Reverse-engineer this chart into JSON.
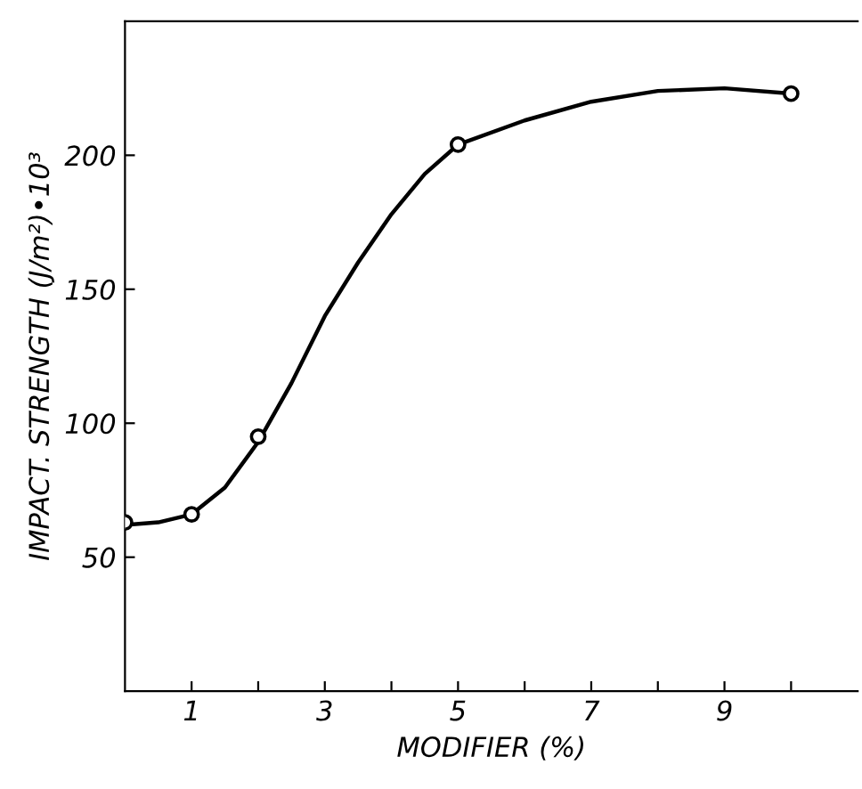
{
  "chart_data": {
    "type": "line",
    "xlabel": "MODIFIER (%)",
    "ylabel": "IMPACT. STRENGTH (J/m²)•10³",
    "grid": false,
    "series": [
      {
        "type": "scatter",
        "marker": "circle",
        "color": "#000000",
        "x": [
          0,
          1,
          2,
          5,
          10
        ],
        "values": [
          63,
          66,
          95,
          204,
          223
        ]
      },
      {
        "marker": "none",
        "color": "#000000",
        "x": [
          0,
          0.5,
          1,
          1.5,
          2,
          2.5,
          3,
          3.5,
          4,
          4.5,
          5,
          6,
          7,
          8,
          9,
          10
        ],
        "values": [
          62,
          63,
          66,
          76,
          93,
          115,
          140,
          160,
          178,
          193,
          204,
          213,
          220,
          224,
          225,
          223
        ]
      }
    ],
    "xlim": [
      0,
      11
    ],
    "ylim": [
      0,
      250
    ],
    "xticks": [
      1,
      {
        "value": 2,
        "label": null
      },
      3,
      {
        "value": 4,
        "label": null
      },
      5,
      {
        "value": 6,
        "label": null
      },
      7,
      {
        "value": 8,
        "label": null
      },
      9,
      {
        "value": 10,
        "label": null
      }
    ],
    "yticks": [
      50,
      100,
      150,
      200
    ]
  }
}
